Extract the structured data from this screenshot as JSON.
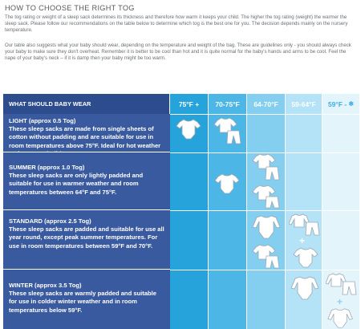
{
  "title": "HOW TO CHOOSE THE RIGHT TOG",
  "intro_1": "The tog rating or weight of a sleep sack determines its thickness and therefore how warm it keeps your child. The higher the tog rating (weight) the warmer the sleep sack. Please follow our recommendations on the table below to determine which tog is the best one for you. The decision depends mainly on the nursery temperature.",
  "intro_2": "Our table also suggests what your baby should wear, depending on the temperature and weight of the bag. These are guidelines only - you should always check your baby to make sure they don't overheat. Remember it is better to be cool than hot and it is quite normal for the baby's hands and arms to be cool. Feel the nape of your baby's neck – if it is damp then your baby might be too warm.",
  "table": {
    "header": "WHAT SHOULD BABY WEAR",
    "columns": [
      {
        "label": "75°F +",
        "color": "#27a3dc"
      },
      {
        "label": "70-75°F",
        "color": "#4cb7e6"
      },
      {
        "label": "64-70°F",
        "color": "#84cfef"
      },
      {
        "label": "59-64°F",
        "color": "#b4e2f6"
      },
      {
        "label": "59°F -",
        "color": "#e4f4fb"
      }
    ],
    "rows": [
      {
        "heading": "LIGHT (approx 0.5 Tog)",
        "description": "These sleep sacks are made from single sheets of cotton without padding and are suitable for use in room temperatures above 75°F. Ideal for hot weather and summer holidays."
      },
      {
        "heading": "SUMMER (approx 1.0 Tog)",
        "description": "These sleep sacks are only lightly padded and suitable for use in warmer weather and room temperatures between 64°F and 75°F."
      },
      {
        "heading": "STANDARD (approx 2.5 Tog)",
        "description": "These sleep sacks are padded and suitable for use all year round, except peak summer temperatures. For use in room temperatures between 59°F and 70°F."
      },
      {
        "heading": "WINTER (approx 3.5 Tog)",
        "description": "These sleep sacks are warmly padded and suitable for use in colder winter weather and in room temperatures below 59°F."
      }
    ],
    "plus_sign": "+",
    "colors": {
      "header_main": "#2c4c8e",
      "row_main": "#3a5aa0"
    }
  }
}
